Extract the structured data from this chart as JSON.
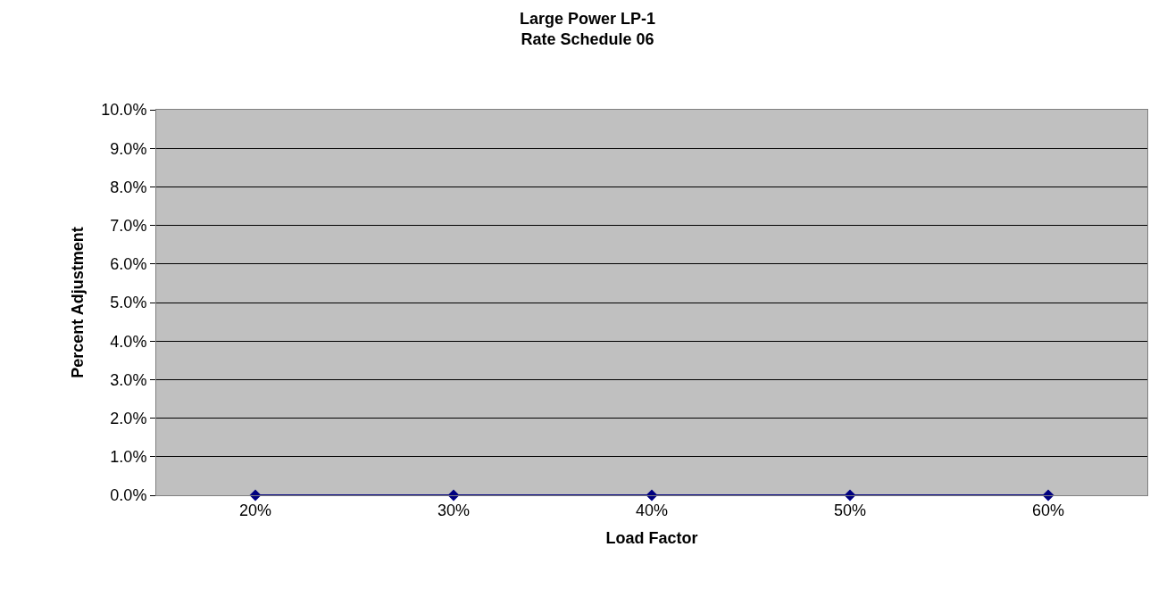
{
  "chart_data": {
    "type": "line",
    "title": "Large Power LP-1\nRate Schedule 06",
    "xlabel": "Load Factor",
    "ylabel": "Percent Adjustment",
    "categories": [
      "20%",
      "30%",
      "40%",
      "50%",
      "60%"
    ],
    "series": [
      {
        "color": "#000080",
        "values": [
          0,
          0,
          0,
          0,
          0
        ]
      }
    ],
    "ylim": [
      0,
      10
    ],
    "yticks": [
      {
        "value": 0,
        "label": "0.0%"
      },
      {
        "value": 1,
        "label": "1.0%"
      },
      {
        "value": 2,
        "label": "2.0%"
      },
      {
        "value": 3,
        "label": "3.0%"
      },
      {
        "value": 4,
        "label": "4.0%"
      },
      {
        "value": 5,
        "label": "5.0%"
      },
      {
        "value": 6,
        "label": "6.0%"
      },
      {
        "value": 7,
        "label": "7.0%"
      },
      {
        "value": 8,
        "label": "8.0%"
      },
      {
        "value": 9,
        "label": "9.0%"
      },
      {
        "value": 10,
        "label": "10.0%"
      }
    ],
    "grid": "y",
    "marker": "diamond",
    "line_style": "solid",
    "legend": false
  }
}
